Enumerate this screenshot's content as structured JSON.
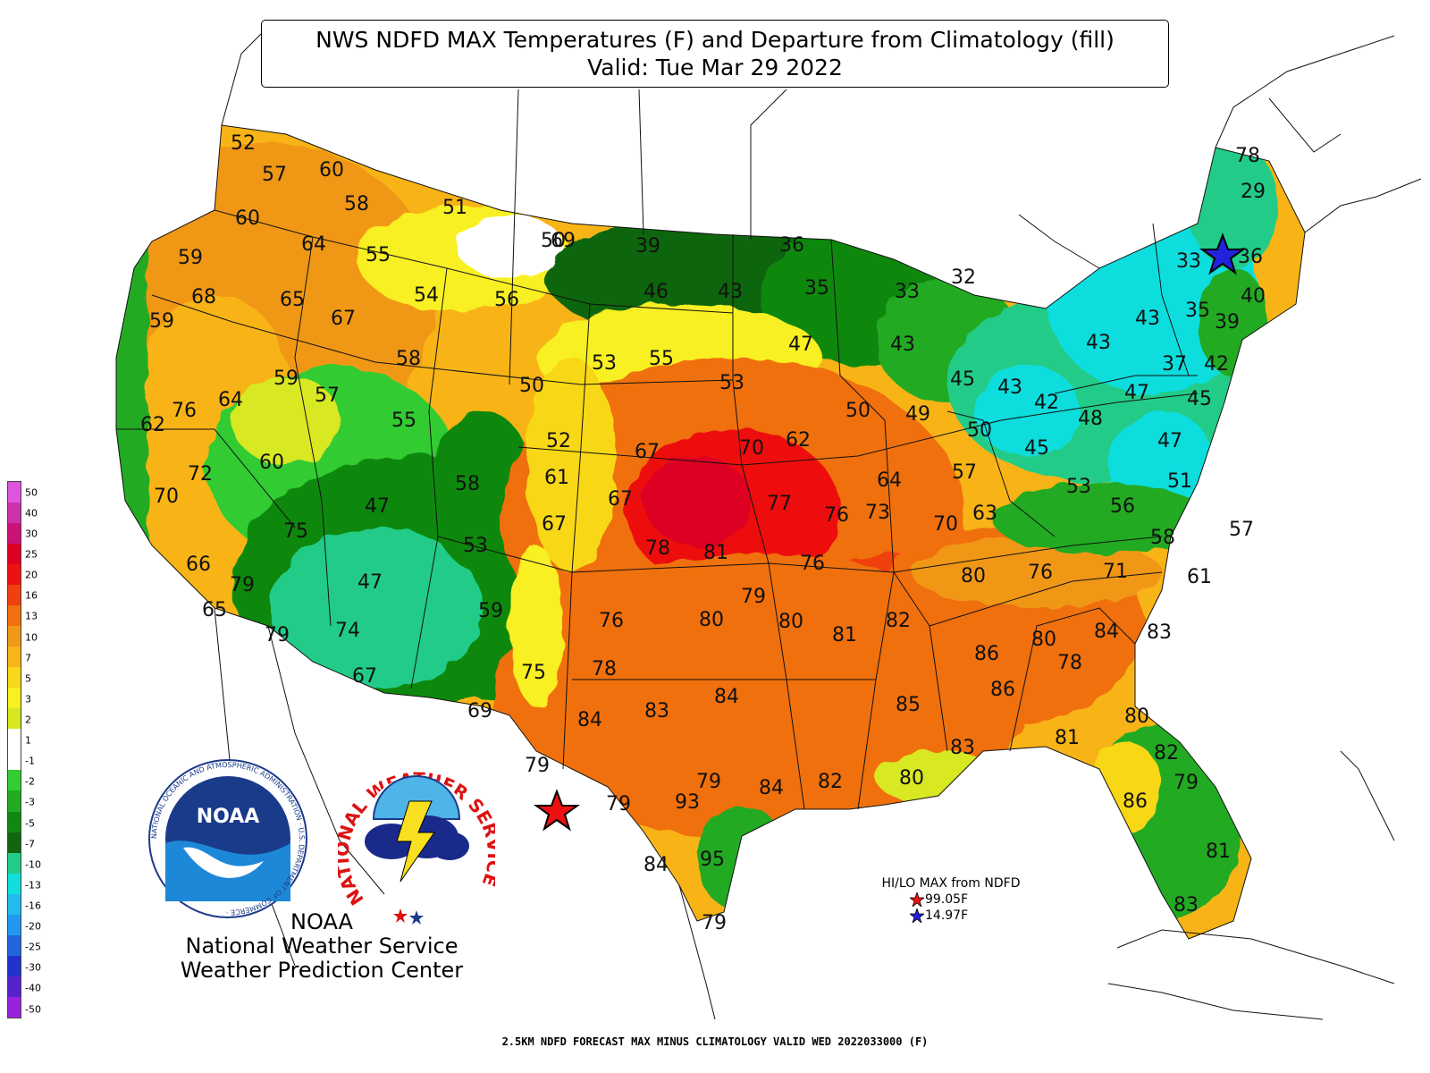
{
  "title": {
    "line1": "NWS NDFD MAX Temperatures (F) and Departure from Climatology (fill)",
    "line2": "Valid: Tue Mar 29 2022"
  },
  "temperatures": [
    {
      "id": "wa-coast",
      "value": "52"
    },
    {
      "id": "wa-nw",
      "value": "57"
    },
    {
      "id": "wa-n",
      "value": "60"
    },
    {
      "id": "wa-e",
      "value": "58"
    },
    {
      "id": "wa-sw",
      "value": "60"
    },
    {
      "id": "wa-se",
      "value": "64"
    },
    {
      "id": "or-coast-n",
      "value": "59"
    },
    {
      "id": "or-nw",
      "value": "68"
    },
    {
      "id": "or-ne",
      "value": "65"
    },
    {
      "id": "or-coast-s",
      "value": "59"
    },
    {
      "id": "id-n",
      "value": "55"
    },
    {
      "id": "id-c",
      "value": "67"
    },
    {
      "id": "mt-w",
      "value": "51"
    },
    {
      "id": "mt-c",
      "value": "54"
    },
    {
      "id": "mt-e",
      "value": "56"
    },
    {
      "id": "mt-ne",
      "value": "50"
    },
    {
      "id": "id-s",
      "value": "58"
    },
    {
      "id": "nv-n",
      "value": "59"
    },
    {
      "id": "ut-n",
      "value": "57"
    },
    {
      "id": "ut-ne",
      "value": "55"
    },
    {
      "id": "ca-n",
      "value": "76"
    },
    {
      "id": "nv-w",
      "value": "64"
    },
    {
      "id": "ca-nc",
      "value": "62"
    },
    {
      "id": "ca-c",
      "value": "72"
    },
    {
      "id": "nv-c",
      "value": "60"
    },
    {
      "id": "ca-bay",
      "value": "70"
    },
    {
      "id": "nv-s",
      "value": "75"
    },
    {
      "id": "ut-c",
      "value": "47"
    },
    {
      "id": "wy-s",
      "value": "58"
    },
    {
      "id": "co-n",
      "value": "53"
    },
    {
      "id": "ca-la",
      "value": "66"
    },
    {
      "id": "ca-se",
      "value": "79"
    },
    {
      "id": "ca-s",
      "value": "65"
    },
    {
      "id": "az-n",
      "value": "47"
    },
    {
      "id": "nm-n",
      "value": "59"
    },
    {
      "id": "az-w",
      "value": "74"
    },
    {
      "id": "ca-sd",
      "value": "79"
    },
    {
      "id": "az-s",
      "value": "67"
    },
    {
      "id": "nm-s",
      "value": "69"
    },
    {
      "id": "wy-c",
      "value": "50"
    },
    {
      "id": "wy-e",
      "value": "52"
    },
    {
      "id": "co-ne",
      "value": "61"
    },
    {
      "id": "co-e",
      "value": "67"
    },
    {
      "id": "nm-ne",
      "value": "75"
    },
    {
      "id": "nd-w",
      "value": "39"
    },
    {
      "id": "nd-c",
      "value": "46"
    },
    {
      "id": "nd-e",
      "value": "43"
    },
    {
      "id": "mn-n",
      "value": "36"
    },
    {
      "id": "mn-c",
      "value": "35"
    },
    {
      "id": "sd-w",
      "value": "53"
    },
    {
      "id": "sd-c",
      "value": "55"
    },
    {
      "id": "sd-e",
      "value": "53"
    },
    {
      "id": "mn-s",
      "value": "47"
    },
    {
      "id": "wi-n",
      "value": "33"
    },
    {
      "id": "mi-up",
      "value": "32"
    },
    {
      "id": "wi-c",
      "value": "43"
    },
    {
      "id": "mi-n",
      "value": "45"
    },
    {
      "id": "mi-c",
      "value": "43"
    },
    {
      "id": "ia-ne",
      "value": "50"
    },
    {
      "id": "wi-s",
      "value": "49"
    },
    {
      "id": "mi-s",
      "value": "50"
    },
    {
      "id": "on-s",
      "value": "42"
    },
    {
      "id": "oh-n",
      "value": "45"
    },
    {
      "id": "ne-w",
      "value": "67"
    },
    {
      "id": "ne-c",
      "value": "70"
    },
    {
      "id": "ne-e",
      "value": "62"
    },
    {
      "id": "ia-c",
      "value": "64"
    },
    {
      "id": "il-n",
      "value": "57"
    },
    {
      "id": "ks-nw",
      "value": "67"
    },
    {
      "id": "ks-n",
      "value": "77"
    },
    {
      "id": "mo-n",
      "value": "76"
    },
    {
      "id": "mo-c",
      "value": "73"
    },
    {
      "id": "il-s",
      "value": "70"
    },
    {
      "id": "in-s",
      "value": "63"
    },
    {
      "id": "ks-w",
      "value": "78"
    },
    {
      "id": "ks-c",
      "value": "81"
    },
    {
      "id": "mo-sw",
      "value": "76"
    },
    {
      "id": "ok-n",
      "value": "79"
    },
    {
      "id": "tn-w",
      "value": "80"
    },
    {
      "id": "tn-c",
      "value": "76"
    },
    {
      "id": "va-w",
      "value": "71"
    },
    {
      "id": "nm-e",
      "value": "76"
    },
    {
      "id": "ok-w",
      "value": "80"
    },
    {
      "id": "ok-c",
      "value": "80"
    },
    {
      "id": "ar-n",
      "value": "81"
    },
    {
      "id": "ms-n",
      "value": "82"
    },
    {
      "id": "al-n",
      "value": "80"
    },
    {
      "id": "ga-n",
      "value": "84"
    },
    {
      "id": "sc-n",
      "value": "83"
    },
    {
      "id": "nc-e",
      "value": "78"
    },
    {
      "id": "tx-nw",
      "value": "78"
    },
    {
      "id": "tx-ne",
      "value": "84"
    },
    {
      "id": "tx-n",
      "value": "85"
    },
    {
      "id": "la-n",
      "value": "86"
    },
    {
      "id": "al-s",
      "value": "84"
    },
    {
      "id": "tx-w",
      "value": "83"
    },
    {
      "id": "tx-wc",
      "value": "86"
    },
    {
      "id": "ms-s",
      "value": "80"
    },
    {
      "id": "ga-s",
      "value": "83"
    },
    {
      "id": "la-s",
      "value": "81"
    },
    {
      "id": "fl-pan",
      "value": "79"
    },
    {
      "id": "tx-bb",
      "value": "79"
    },
    {
      "id": "tx-c",
      "value": "84"
    },
    {
      "id": "tx-e",
      "value": "82"
    },
    {
      "id": "tx-se",
      "value": "80"
    },
    {
      "id": "la-se",
      "value": "82"
    },
    {
      "id": "fl-ne",
      "value": "79"
    },
    {
      "id": "fl-c",
      "value": "79"
    },
    {
      "id": "tx-bigbend",
      "value": "93"
    },
    {
      "id": "tx-sc",
      "value": "86"
    },
    {
      "id": "fl-w",
      "value": "84"
    },
    {
      "id": "tx-s",
      "value": "95"
    },
    {
      "id": "tx-gulf",
      "value": "81"
    },
    {
      "id": "fl-se",
      "value": "79"
    },
    {
      "id": "tx-tip",
      "value": "83"
    },
    {
      "id": "fl-s",
      "value": "78"
    },
    {
      "id": "me-n",
      "value": "29"
    },
    {
      "id": "me-c",
      "value": "33"
    },
    {
      "id": "qc-s",
      "value": "36"
    },
    {
      "id": "me-s",
      "value": "40"
    },
    {
      "id": "vt-n",
      "value": "43"
    },
    {
      "id": "on-e",
      "value": "35"
    },
    {
      "id": "nh",
      "value": "39"
    },
    {
      "id": "ma-n",
      "value": "43"
    },
    {
      "id": "ny-w",
      "value": "37"
    },
    {
      "id": "ny-s",
      "value": "42"
    },
    {
      "id": "ma",
      "value": "47"
    },
    {
      "id": "pa-n",
      "value": "45"
    },
    {
      "id": "ct",
      "value": "48"
    },
    {
      "id": "oh-e",
      "value": "47"
    },
    {
      "id": "nj",
      "value": "51"
    },
    {
      "id": "pa-s",
      "value": "53"
    },
    {
      "id": "wv",
      "value": "56"
    },
    {
      "id": "va-n",
      "value": "57"
    },
    {
      "id": "de",
      "value": "58"
    },
    {
      "id": "va-s",
      "value": "61"
    },
    {
      "id": "nc-ne",
      "value": "69"
    },
    {
      "id": "sd-ne",
      "value": "50"
    }
  ],
  "legend": {
    "ticks": [
      "50",
      "40",
      "30",
      "25",
      "20",
      "16",
      "13",
      "10",
      "7",
      "5",
      "3",
      "2",
      "1",
      "-1",
      "-2",
      "-3",
      "-5",
      "-7",
      "-10",
      "-13",
      "-16",
      "-20",
      "-25",
      "-30",
      "-40",
      "-50"
    ],
    "colors": [
      "#dd55dd",
      "#cc33aa",
      "#cc1177",
      "#dd0022",
      "#ee1111",
      "#f04010",
      "#f07010",
      "#f09818",
      "#f8b418",
      "#f8d818",
      "#f8f020",
      "#d8e820",
      "#ffffff",
      "#ffffff",
      "#33cc33",
      "#22aa22",
      "#118811",
      "#116611",
      "#22cc88",
      "#11dddd",
      "#22bbee",
      "#2299ee",
      "#2266dd",
      "#2233cc",
      "#5522cc",
      "#9922dd"
    ]
  },
  "hilo": {
    "title": "HI/LO MAX from NDFD",
    "high": "99.05F",
    "low": "14.97F"
  },
  "agency": {
    "line1": "NOAA",
    "line2": "National Weather Service",
    "line3": "Weather Prediction Center"
  },
  "logos": {
    "noaa_text": "NOAA",
    "noaa_ring": "NATIONAL OCEANIC AND ATMOSPHERIC ADMINISTRATION · U.S. DEPARTMENT OF COMMERCE ·",
    "nws_ring": "NATIONAL WEATHER SERVICE"
  },
  "footer": "2.5KM NDFD FORECAST MAX MINUS CLIMATOLOGY VALID WED 2022033000 (F)",
  "colors": {
    "warm_core": "#ee1111",
    "warm": "#f07010",
    "mild": "#f8d818",
    "cool": "#22aa22",
    "cold": "#11dddd",
    "hi_star": "#ee1111",
    "lo_star": "#2222dd"
  }
}
